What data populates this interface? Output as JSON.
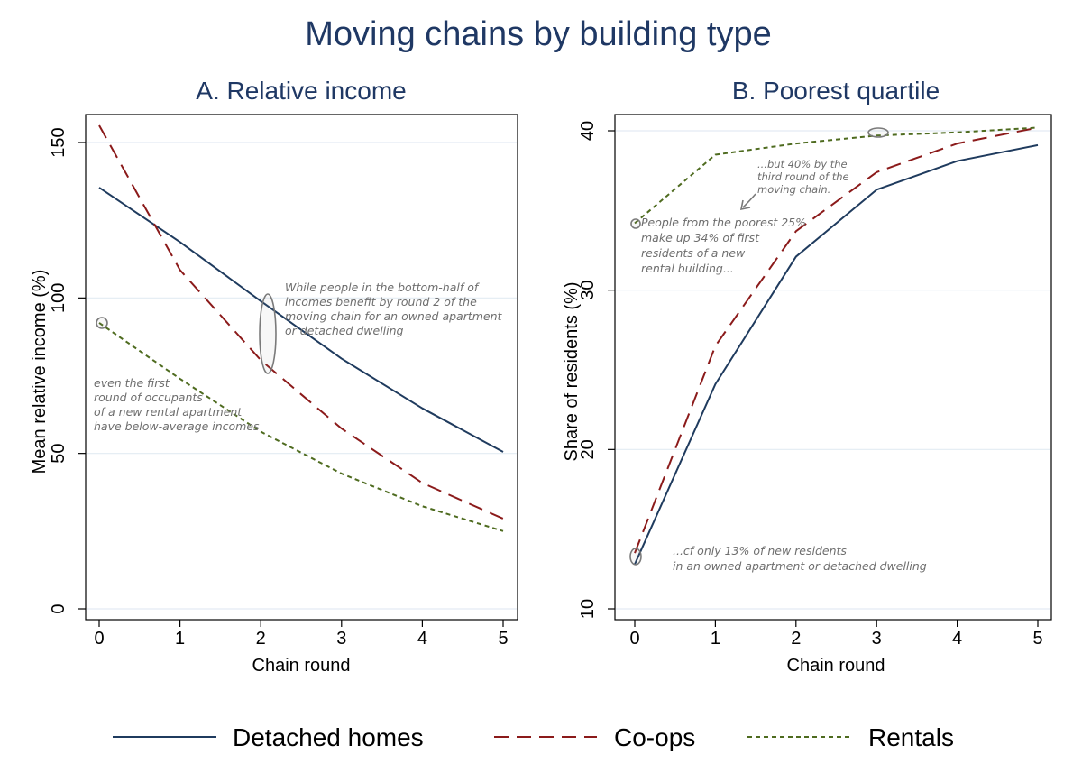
{
  "title": "Moving chains by building type",
  "colors": {
    "detached": "#1f3b5e",
    "coops": "#8b1a1a",
    "rentals": "#4e6b1f",
    "title": "#1f3864",
    "grid": "#e3ebf3",
    "note": "#6e6e6e"
  },
  "legend": [
    {
      "name": "Detached homes",
      "style": "solid",
      "color_key": "detached"
    },
    {
      "name": "Co-ops",
      "style": "dashed",
      "color_key": "coops"
    },
    {
      "name": "Rentals",
      "style": "dotted",
      "color_key": "rentals"
    }
  ],
  "chart_data": [
    {
      "type": "line",
      "title": "A. Relative income",
      "xlabel": "Chain round",
      "ylabel": "Mean relative income (%)",
      "x": [
        0,
        1,
        2,
        3,
        4,
        5
      ],
      "xticks": [
        "0",
        "1",
        "2",
        "3",
        "4",
        "5"
      ],
      "yticks": [
        "0",
        "50",
        "100",
        "150"
      ],
      "ylim": [
        0,
        160
      ],
      "series": [
        {
          "name": "Detached homes",
          "values": [
            135.5,
            118,
            99,
            80.5,
            64.5,
            50.5
          ]
        },
        {
          "name": "Co-ops",
          "values": [
            155.5,
            109,
            80,
            58,
            40.5,
            29
          ]
        },
        {
          "name": "Rentals",
          "values": [
            92,
            74,
            57,
            43.5,
            33,
            25
          ]
        }
      ],
      "annotations": [
        {
          "lines": [
            "While people in the bottom-half of",
            "incomes benefit by round 2 of the",
            "moving chain for an owned apartment",
            "or detached dwelling"
          ]
        },
        {
          "lines": [
            "even the first",
            "round of occupants",
            "of a new rental apartment",
            "have below-average incomes"
          ]
        }
      ]
    },
    {
      "type": "line",
      "title": "B. Poorest quartile",
      "xlabel": "Chain round",
      "ylabel": "Share of residents (%)",
      "x": [
        0,
        1,
        2,
        3,
        4,
        5
      ],
      "xticks": [
        "0",
        "1",
        "2",
        "3",
        "4",
        "5"
      ],
      "yticks": [
        "10",
        "20",
        "30",
        "40"
      ],
      "ylim": [
        10,
        40.5
      ],
      "series": [
        {
          "name": "Detached homes",
          "values": [
            12.8,
            24.1,
            32.1,
            36.3,
            38.1,
            39.1
          ]
        },
        {
          "name": "Co-ops",
          "values": [
            13.5,
            26.5,
            33.7,
            37.4,
            39.2,
            40.2
          ]
        },
        {
          "name": "Rentals",
          "values": [
            34.2,
            38.5,
            39.2,
            39.7,
            39.9,
            40.2
          ]
        }
      ],
      "annotations": [
        {
          "lines": [
            "...but 40% by the",
            "third round of the",
            "moving chain."
          ]
        },
        {
          "lines": [
            "People from the poorest 25%",
            "make up 34% of first",
            "residents of a new",
            "rental building..."
          ]
        },
        {
          "lines": [
            "...cf only 13% of new residents",
            "in an owned apartment or detached dwelling"
          ]
        }
      ]
    }
  ]
}
